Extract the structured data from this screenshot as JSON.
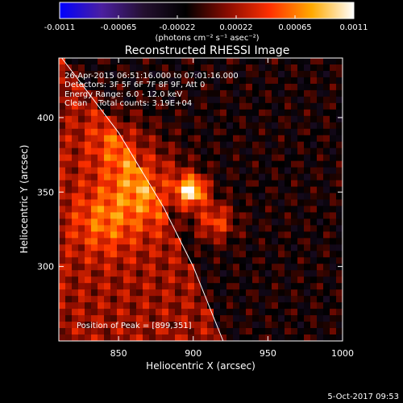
{
  "chart_data": {
    "type": "heatmap",
    "title": "Reconstructed RHESSI Image",
    "xlabel": "Heliocentric X (arcsec)",
    "ylabel": "Heliocentric Y (arcsec)",
    "xlim": [
      810,
      1000
    ],
    "ylim": [
      250,
      440
    ],
    "xticks": [
      850,
      900,
      950,
      1000
    ],
    "yticks": [
      300,
      350,
      400
    ],
    "colorbar": {
      "ticks": [
        "-0.0011",
        "-0.00065",
        "-0.00022",
        "0.00022",
        "0.00065",
        "0.0011"
      ],
      "range": [
        -0.0011,
        0.0011
      ],
      "unit_label": "(photons cm⁻² s⁻¹ asec⁻²)",
      "colormap": [
        "#0000ff",
        "#4b1fa0",
        "#241030",
        "#000000",
        "#8a0c00",
        "#ff3000",
        "#ffaa00",
        "#ffffff"
      ]
    },
    "info": {
      "time_range": "26-Apr-2015 06:51:16.000 to 07:01:16.000",
      "detectors": "Detectors: 3F 5F 6F 7F 8F 9F, Att 0",
      "energy": "Energy Range: 6.0 - 12.0 keV",
      "method": "Clean",
      "counts": "Total counts: 3.19E+04"
    },
    "peak": {
      "label": "Position of Peak = [899,351]",
      "x": 899,
      "y": 351
    },
    "limb": [
      [
        812,
        442
      ],
      [
        850,
        390
      ],
      [
        880,
        340
      ],
      [
        900,
        300
      ],
      [
        920,
        250
      ]
    ],
    "features": [
      {
        "x": 899,
        "y": 351,
        "amp": 1.0,
        "sigma": 7
      },
      {
        "x": 915,
        "y": 330,
        "amp": 0.55,
        "sigma": 9
      },
      {
        "x": 870,
        "y": 355,
        "amp": 0.5,
        "sigma": 18
      },
      {
        "x": 840,
        "y": 330,
        "amp": 0.35,
        "sigma": 15
      },
      {
        "x": 850,
        "y": 385,
        "amp": 0.3,
        "sigma": 14
      }
    ]
  },
  "footer": {
    "date": "5-Oct-2017 09:53"
  }
}
